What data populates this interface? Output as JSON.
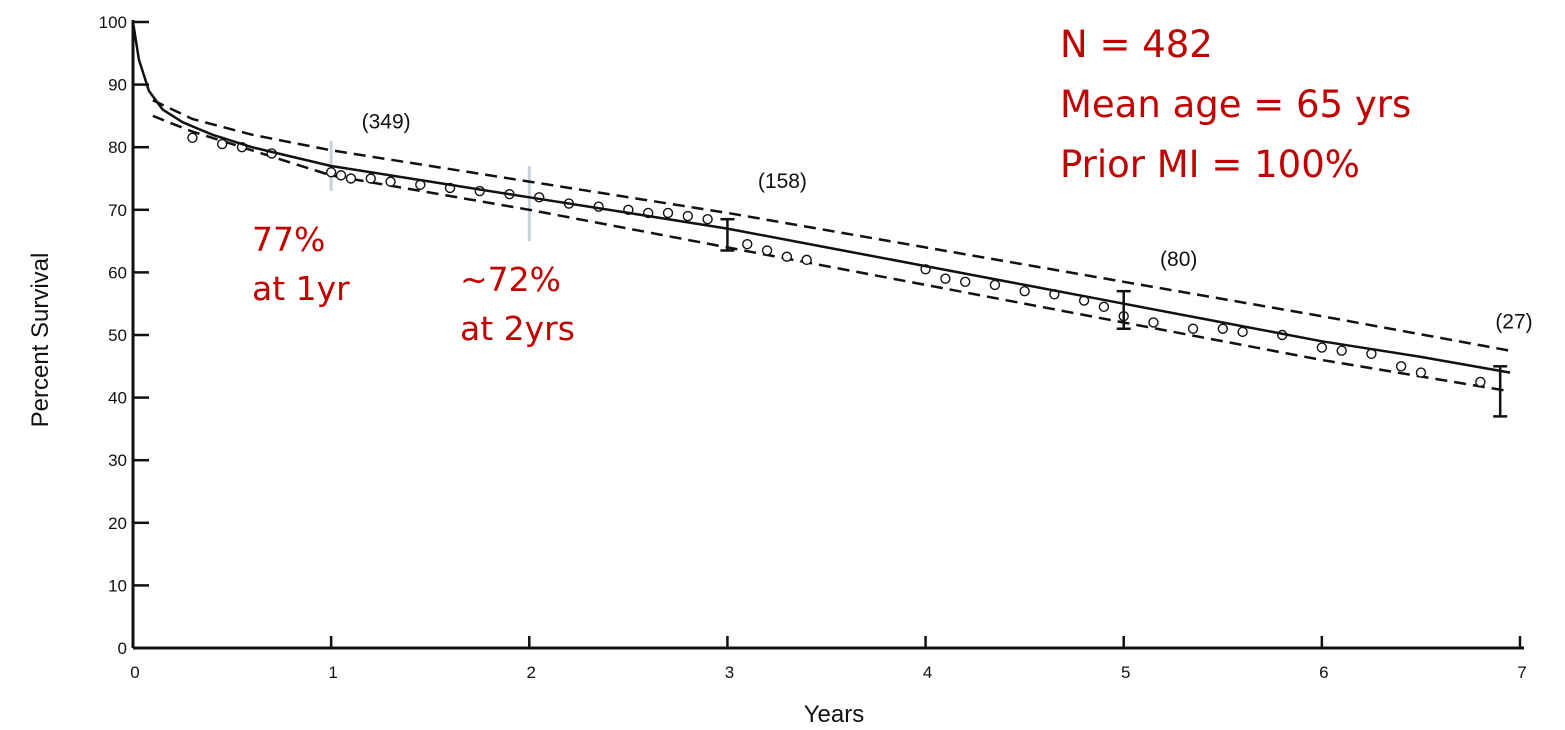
{
  "chart_data": {
    "type": "line",
    "xlabel": "Years",
    "ylabel": "Percent Survival",
    "xlim": [
      0,
      7
    ],
    "ylim": [
      0,
      100
    ],
    "x_ticks": [
      0,
      1,
      2,
      3,
      4,
      5,
      6,
      7
    ],
    "y_ticks": [
      0,
      10,
      20,
      30,
      40,
      50,
      60,
      70,
      80,
      90,
      100
    ],
    "grid": false,
    "series": [
      {
        "role": "estimate",
        "style": "solid",
        "x": [
          0,
          0.03,
          0.08,
          0.15,
          0.25,
          0.4,
          0.6,
          0.8,
          1.0,
          1.5,
          2.0,
          2.5,
          3.0,
          3.5,
          4.0,
          4.5,
          5.0,
          5.5,
          6.0,
          6.5,
          6.95
        ],
        "y": [
          100,
          94,
          89,
          86,
          84,
          82,
          80,
          78.5,
          77,
          74.5,
          72,
          69.5,
          67,
          64,
          61,
          58,
          55,
          52,
          49,
          46.5,
          44
        ]
      },
      {
        "role": "upper confidence limit",
        "style": "dashed",
        "x": [
          0.1,
          0.3,
          0.6,
          1.0,
          2.0,
          3.0,
          4.0,
          5.0,
          6.0,
          6.95
        ],
        "y": [
          87.5,
          84.5,
          82,
          79.5,
          74.5,
          69.5,
          64,
          58.5,
          53,
          47.5
        ]
      },
      {
        "role": "lower confidence limit",
        "style": "dashed",
        "x": [
          0.1,
          0.3,
          0.6,
          1.0,
          2.0,
          3.0,
          4.0,
          5.0,
          6.0,
          6.95
        ],
        "y": [
          85,
          82.5,
          79.5,
          75.5,
          70,
          64,
          58,
          52,
          46,
          41
        ]
      }
    ],
    "observed_points": {
      "x": [
        0.3,
        0.45,
        0.55,
        0.7,
        1.0,
        1.05,
        1.1,
        1.2,
        1.3,
        1.45,
        1.6,
        1.75,
        1.9,
        2.05,
        2.2,
        2.35,
        2.5,
        2.6,
        2.7,
        2.8,
        2.9,
        3.1,
        3.2,
        3.3,
        3.4,
        4.0,
        4.1,
        4.2,
        4.35,
        4.5,
        4.65,
        4.8,
        4.9,
        5.0,
        5.15,
        5.35,
        5.5,
        5.6,
        5.8,
        6.0,
        6.1,
        6.25,
        6.4,
        6.5,
        6.8
      ],
      "y": [
        81.5,
        80.5,
        80,
        79,
        76,
        75.5,
        75,
        75,
        74.5,
        74,
        73.5,
        73,
        72.5,
        72,
        71,
        70.5,
        70,
        69.5,
        69.5,
        69,
        68.5,
        64.5,
        63.5,
        62.5,
        62,
        60.5,
        59,
        58.5,
        58,
        57,
        56.5,
        55.5,
        54.5,
        53,
        52,
        51,
        51,
        50.5,
        50,
        48,
        47.5,
        47,
        45,
        44,
        42.5
      ]
    },
    "error_bars": [
      {
        "x": 3,
        "low": 63.5,
        "high": 68.5
      },
      {
        "x": 5,
        "low": 51,
        "high": 57
      },
      {
        "x": 6.9,
        "low": 37,
        "high": 45
      }
    ],
    "risk_labels": [
      {
        "x": 1,
        "label": "(349)"
      },
      {
        "x": 3,
        "label": "(158)"
      },
      {
        "x": 5,
        "label": "(80)"
      },
      {
        "x": 7,
        "label": "(27)"
      }
    ],
    "annotations": [
      {
        "x": 1,
        "value_label": "77%",
        "time_label": "at 1yr"
      },
      {
        "x": 2,
        "value_label": "~72%",
        "time_label": "at 2yrs"
      }
    ],
    "stats": [
      "N = 482",
      "Mean age = 65 yrs",
      "Prior MI = 100%"
    ],
    "colors": {
      "curve": "#111111",
      "annotation": "#c00000",
      "marker_line": "#c8d0dc"
    }
  }
}
